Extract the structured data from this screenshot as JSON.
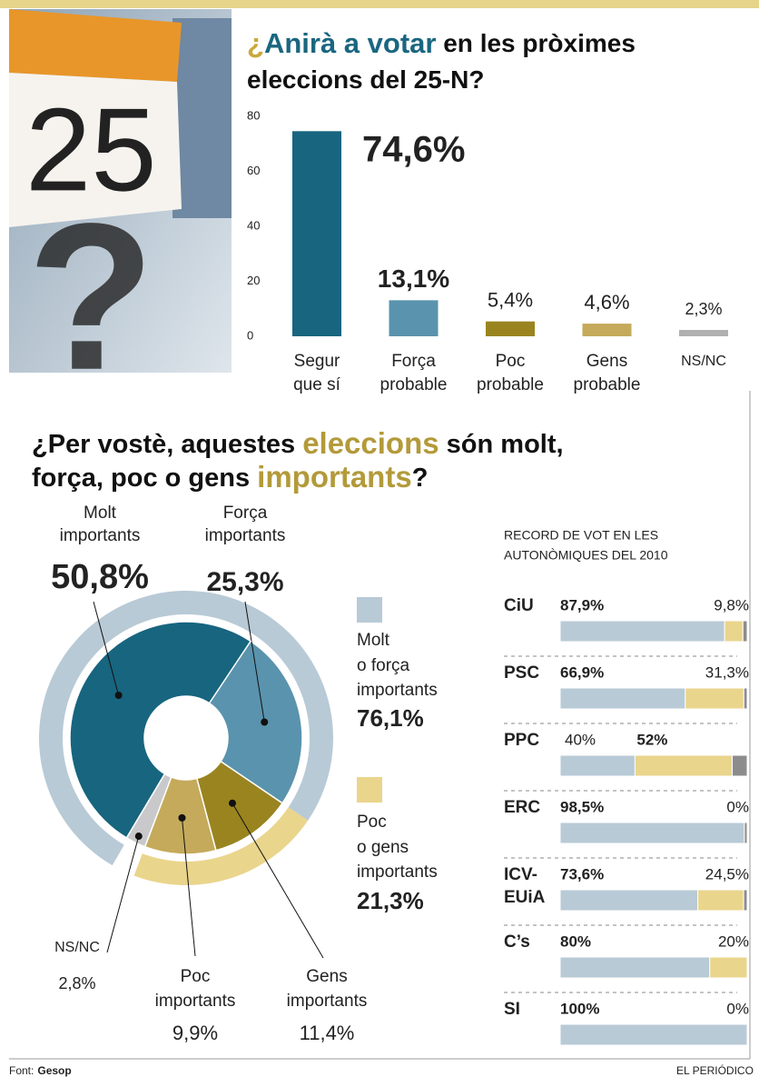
{
  "illustration": {
    "day": "25",
    "mark": "?"
  },
  "chart_data": [
    {
      "type": "bar",
      "title_lines": [
        [
          {
            "text": "¿",
            "color": "#c9a93a"
          },
          {
            "text": "Anirà a votar",
            "color": "#1a6680"
          },
          {
            "text": " en les pròximes"
          }
        ],
        [
          {
            "text": "eleccions del 25-N?"
          }
        ]
      ],
      "categories": [
        [
          "Segur",
          "que sí"
        ],
        [
          "Força",
          "probable"
        ],
        [
          "Poc",
          "probable"
        ],
        [
          "Gens",
          "probable"
        ],
        [
          "NS/NC"
        ]
      ],
      "values": [
        74.6,
        13.1,
        5.4,
        4.6,
        2.3
      ],
      "value_labels": [
        "74,6%",
        "13,1%",
        "5,4%",
        "4,6%",
        "2,3%"
      ],
      "colors": [
        "#17657f",
        "#5a93ad",
        "#9a8420",
        "#c4aa5a",
        "#b0b0b0"
      ],
      "ylim": [
        0,
        80
      ],
      "yticks": [
        0,
        20,
        40,
        60,
        80
      ],
      "grid": false
    },
    {
      "type": "donut",
      "title_lines": [
        [
          {
            "text": "¿Per vostè, aquestes "
          },
          {
            "text": "eleccions",
            "color": "#b39a3a"
          },
          {
            "text": " són molt,"
          }
        ],
        [
          {
            "text": "força, poc o gens "
          },
          {
            "text": "importants",
            "color": "#b39a3a"
          },
          {
            "text": "?"
          }
        ]
      ],
      "categories": [
        [
          "Força",
          "importants"
        ],
        [
          "Gens",
          "importants"
        ],
        [
          "Poc",
          "importants"
        ],
        [
          "NS/NC"
        ],
        [
          "Molt",
          "importants"
        ]
      ],
      "values": [
        25.3,
        11.4,
        9.9,
        2.8,
        50.8
      ],
      "value_labels": [
        "25,3%",
        "11,4%",
        "9,9%",
        "2,8%",
        "50,8%"
      ],
      "colors": [
        "#5a93ad",
        "#9a8420",
        "#c4aa5a",
        "#c9c9cb",
        "#17657f"
      ],
      "outer": {
        "categories": [
          [
            "Molt",
            "o força",
            "importants"
          ],
          [
            "Poc",
            "o gens",
            "importants"
          ]
        ],
        "values": [
          76.1,
          21.3
        ],
        "value_labels": [
          "76,1%",
          "21,3%"
        ],
        "colors": [
          "#b8cad6",
          "#ead58c"
        ]
      }
    },
    {
      "type": "hbar",
      "title_lines": [
        "RECORD DE VOT EN LES",
        "AUTONÒMIQUES DEL 2010"
      ],
      "categories": [
        [
          "CiU"
        ],
        [
          "PSC"
        ],
        [
          "PPC"
        ],
        [
          "ERC"
        ],
        [
          "ICV-",
          "EUiA"
        ],
        [
          "C’s"
        ],
        [
          "SI"
        ]
      ],
      "xlim": [
        0,
        100
      ],
      "series": [
        {
          "color": "#b8cad6",
          "values": [
            87.9,
            66.9,
            40,
            98.5,
            73.6,
            80,
            100
          ],
          "value_labels": [
            "87,9%",
            "66,9%",
            "40%",
            "98,5%",
            "73,6%",
            "80%",
            "100%"
          ],
          "label_colors": [
            "#2a7594",
            "#2a7594",
            null,
            "#2a7594",
            "#2a7594",
            "#2a7594",
            "#2a7594"
          ]
        },
        {
          "color": "#ead58c",
          "values": [
            9.8,
            31.3,
            52,
            0,
            24.5,
            20,
            0
          ],
          "value_labels": [
            "9,8%",
            "31,3%",
            "52%",
            "0%",
            "24,5%",
            "20%",
            "0%"
          ],
          "label_colors": [
            null,
            null,
            "#9a8230",
            null,
            null,
            null,
            null
          ]
        },
        {
          "color": "#8c8c8c",
          "values": [
            2.3,
            1.8,
            8,
            1.5,
            1.9,
            0,
            0
          ]
        }
      ]
    }
  ],
  "footer": {
    "source_label": "Font:",
    "source": "Gesop",
    "brand": "EL PERIÓDICO"
  }
}
